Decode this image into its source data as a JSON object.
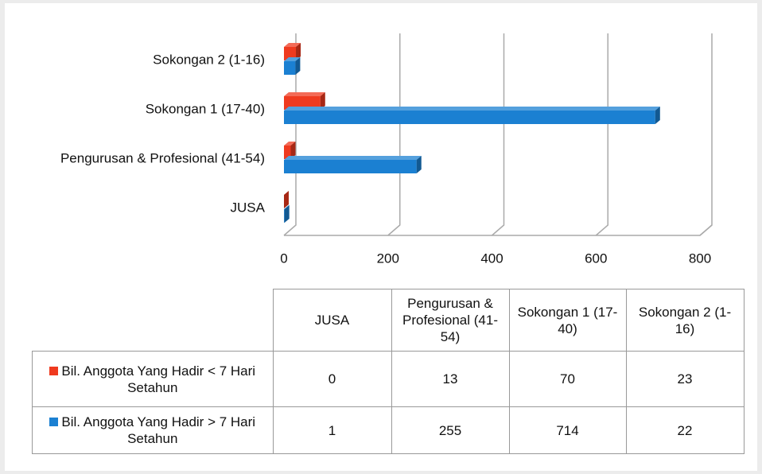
{
  "chart_data": {
    "type": "bar3d_horizontal",
    "categories": [
      "JUSA",
      "Pengurusan & Profesional (41-54)",
      "Sokongan 1 (17-40)",
      "Sokongan 2 (1-16)"
    ],
    "series": [
      {
        "name": "Bil. Anggota Yang Hadir < 7 Hari Setahun",
        "color": "#ef3a1f",
        "values": [
          0,
          13,
          70,
          23
        ]
      },
      {
        "name": "Bil. Anggota Yang Hadir > 7 Hari Setahun",
        "color": "#1b80d2",
        "values": [
          1,
          255,
          714,
          22
        ]
      }
    ],
    "xlim": [
      0,
      800
    ],
    "xticks": [
      0,
      200,
      400,
      600,
      800
    ],
    "grid": true,
    "data_table": true
  }
}
